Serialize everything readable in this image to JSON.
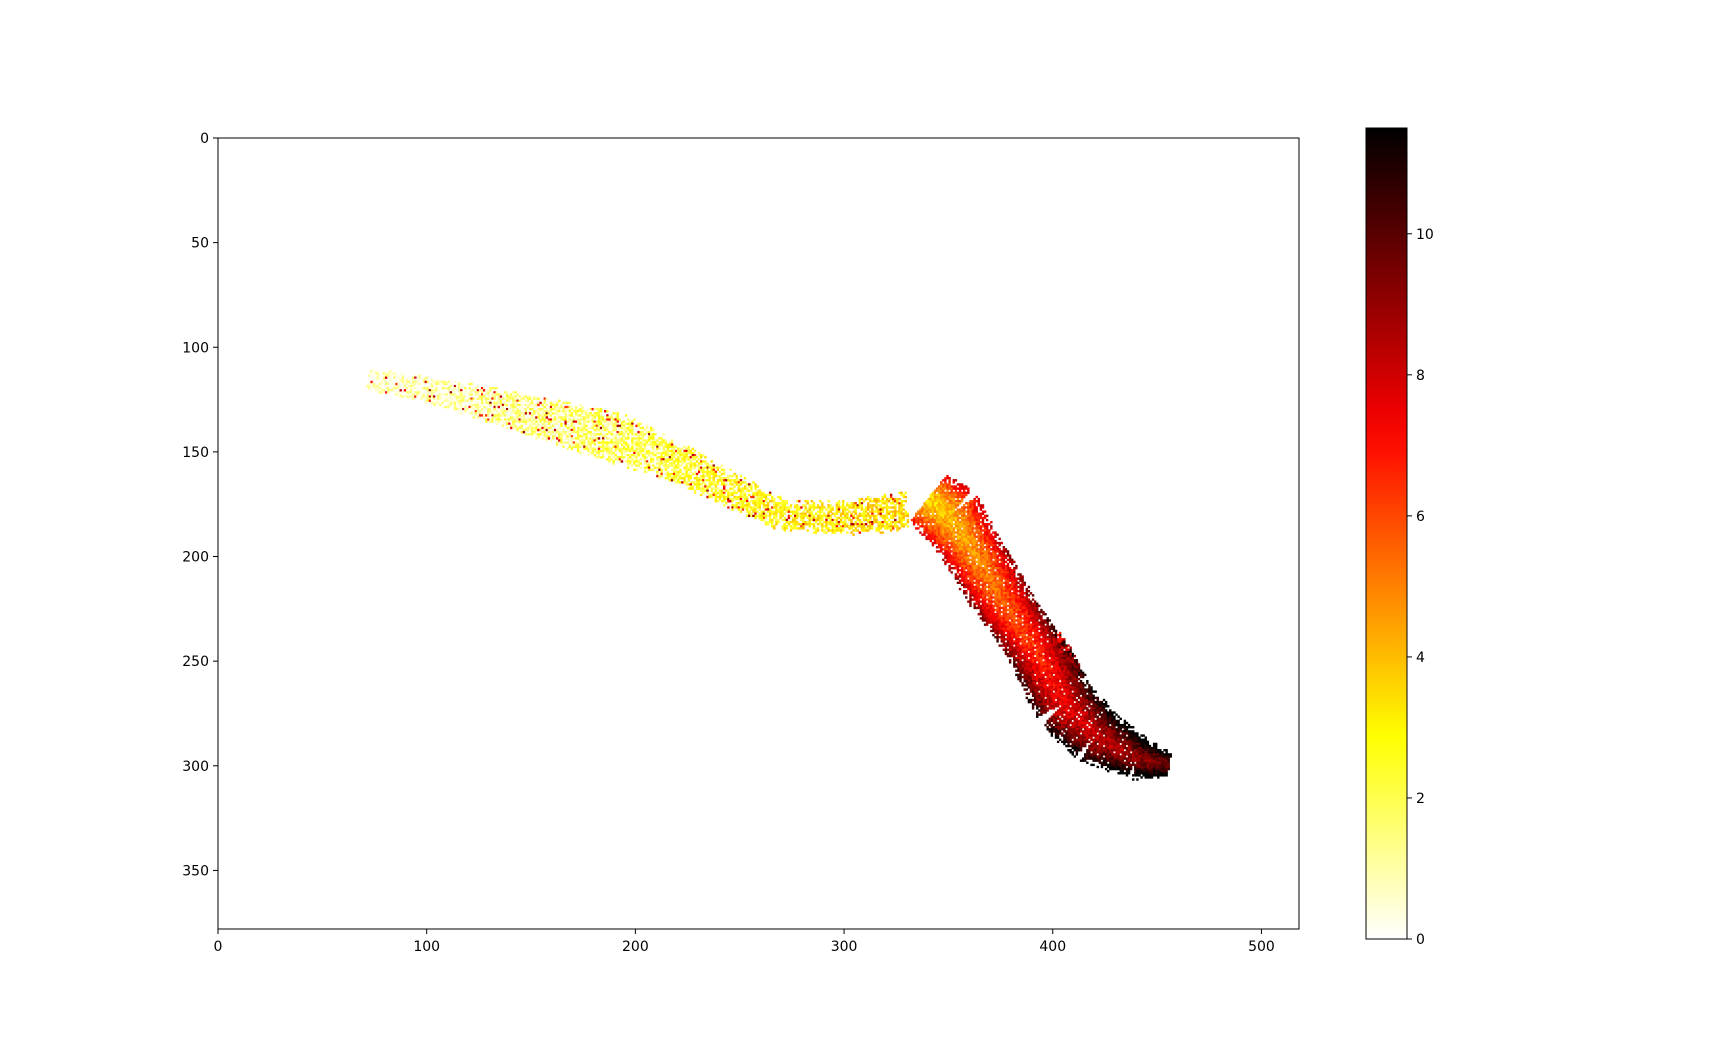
{
  "chart_data": {
    "type": "heatmap",
    "title": "",
    "xlabel": "",
    "ylabel": "",
    "xlim": [
      0,
      518
    ],
    "ylim": [
      378,
      0
    ],
    "y_axis_inverted": true,
    "x_ticks": [
      0,
      100,
      200,
      300,
      400,
      500
    ],
    "x_tick_labels": [
      "0",
      "100",
      "200",
      "300",
      "400",
      "500"
    ],
    "y_ticks": [
      0,
      50,
      100,
      150,
      200,
      250,
      300,
      350
    ],
    "y_tick_labels": [
      "0",
      "50",
      "100",
      "150",
      "200",
      "250",
      "300",
      "350"
    ],
    "colormap": "hot_r",
    "background_color": "#ffffff",
    "colorbar": {
      "range": [
        0,
        11.5
      ],
      "ticks": [
        0,
        2,
        4,
        6,
        8,
        10
      ],
      "tick_labels": [
        "0",
        "2",
        "4",
        "6",
        "8",
        "10"
      ],
      "colors": [
        "#ffffff",
        "#ffff00",
        "#ff0000",
        "#000000"
      ]
    },
    "series": [
      {
        "points": [
          [
            72,
            115
          ],
          [
            100,
            120
          ],
          [
            130,
            127
          ],
          [
            160,
            135
          ],
          [
            190,
            143
          ],
          [
            220,
            155
          ],
          [
            250,
            170
          ],
          [
            270,
            180
          ],
          [
            300,
            181
          ],
          [
            330,
            178
          ]
        ],
        "width": [
          5,
          6,
          8,
          10,
          12,
          9,
          8,
          7,
          8,
          9
        ],
        "value_range": [
          0.5,
          3.5
        ]
      },
      {
        "points": [
          [
            340,
            172
          ],
          [
            350,
            180
          ],
          [
            360,
            195
          ],
          [
            372,
            215
          ],
          [
            385,
            235
          ],
          [
            395,
            250
          ],
          [
            405,
            270
          ],
          [
            420,
            285
          ],
          [
            440,
            296
          ],
          [
            455,
            299
          ]
        ],
        "width": [
          14,
          16,
          14,
          14,
          13,
          14,
          15,
          14,
          10,
          6
        ],
        "value_range": [
          5,
          11
        ]
      },
      {
        "points": [
          [
            398,
            240
          ],
          [
            405,
            248
          ],
          [
            410,
            257
          ]
        ],
        "width": [
          6,
          5,
          4
        ],
        "value_range": [
          7,
          10
        ]
      }
    ]
  }
}
